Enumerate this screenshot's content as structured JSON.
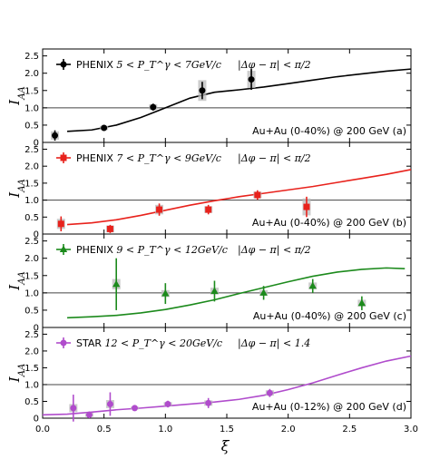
{
  "chart_data": [
    {
      "type": "scatter",
      "panel": "a",
      "ylabel": "I_AA",
      "ylim": [
        0,
        2.7
      ],
      "yticks": [
        "0",
        "0.5",
        "1.0",
        "1.5",
        "2.0",
        "2.5"
      ],
      "legend_experiment": "PHENIX",
      "legend_range": "5 < P_T^γ < 7GeV/c",
      "cut_label": "|Δφ − π| < π/2",
      "system_label": "Au+Au (0-40%) @ 200 GeV  (a)",
      "color": "#000000",
      "marker": "circle",
      "points": [
        {
          "x": 0.1,
          "y": 0.2,
          "err": 0.15,
          "sys": 0.12
        },
        {
          "x": 0.5,
          "y": 0.42,
          "err": 0.06,
          "sys": 0.06
        },
        {
          "x": 0.9,
          "y": 1.02,
          "err": 0.1,
          "sys": 0.08
        },
        {
          "x": 1.3,
          "y": 1.5,
          "err": 0.25,
          "sys": 0.3
        },
        {
          "x": 1.7,
          "y": 1.82,
          "err": 0.3,
          "sys": 0.25
        }
      ],
      "curve": {
        "x": [
          0.2,
          0.4,
          0.6,
          0.8,
          1.0,
          1.2,
          1.4,
          1.6,
          1.8,
          2.0,
          2.2,
          2.4,
          2.6,
          2.8,
          3.0
        ],
        "y": [
          0.32,
          0.36,
          0.5,
          0.72,
          1.0,
          1.28,
          1.45,
          1.52,
          1.6,
          1.7,
          1.8,
          1.9,
          1.98,
          2.06,
          2.12
        ]
      }
    },
    {
      "type": "scatter",
      "panel": "b",
      "ylabel": "I_AA",
      "ylim": [
        0,
        2.7
      ],
      "yticks": [
        "0",
        "0.5",
        "1.0",
        "1.5",
        "2.0",
        "2.5"
      ],
      "legend_experiment": "PHENIX",
      "legend_range": "7 < P_T^γ < 9GeV/c",
      "cut_label": "|Δφ − π| < π/2",
      "system_label": "Au+Au (0-40%) @ 200 GeV  (b)",
      "color": "#e8221c",
      "marker": "square",
      "points": [
        {
          "x": 0.15,
          "y": 0.3,
          "err": 0.22,
          "sys": 0.15
        },
        {
          "x": 0.55,
          "y": 0.15,
          "err": 0.12,
          "sys": 0.1
        },
        {
          "x": 0.95,
          "y": 0.72,
          "err": 0.18,
          "sys": 0.14
        },
        {
          "x": 1.35,
          "y": 0.72,
          "err": 0.14,
          "sys": 0.1
        },
        {
          "x": 1.75,
          "y": 1.15,
          "err": 0.14,
          "sys": 0.1
        },
        {
          "x": 2.15,
          "y": 0.8,
          "err": 0.3,
          "sys": 0.25
        }
      ],
      "curve": {
        "x": [
          0.2,
          0.4,
          0.6,
          0.8,
          1.0,
          1.2,
          1.4,
          1.6,
          1.8,
          2.0,
          2.2,
          2.4,
          2.6,
          2.8,
          3.0
        ],
        "y": [
          0.28,
          0.33,
          0.42,
          0.55,
          0.7,
          0.85,
          0.98,
          1.1,
          1.2,
          1.3,
          1.4,
          1.52,
          1.64,
          1.76,
          1.9
        ]
      }
    },
    {
      "type": "scatter",
      "panel": "c",
      "ylabel": "I_AA",
      "ylim": [
        0,
        2.7
      ],
      "yticks": [
        "0",
        "0.5",
        "1.0",
        "1.5",
        "2.0",
        "2.5"
      ],
      "legend_experiment": "PHENIX",
      "legend_range": "9 < P_T^γ < 12GeV/c",
      "cut_label": "|Δφ − π| < π/2",
      "system_label": "Au+Au (0-40%) @ 200 GeV  (c)",
      "color": "#1c8a1c",
      "marker": "triangle",
      "points": [
        {
          "x": 0.6,
          "y": 1.25,
          "err": 0.75,
          "sys": 0.15
        },
        {
          "x": 1.0,
          "y": 0.98,
          "err": 0.3,
          "sys": 0.1
        },
        {
          "x": 1.4,
          "y": 1.05,
          "err": 0.3,
          "sys": 0.1
        },
        {
          "x": 1.8,
          "y": 1.0,
          "err": 0.2,
          "sys": 0.08
        },
        {
          "x": 2.2,
          "y": 1.2,
          "err": 0.2,
          "sys": 0.1
        },
        {
          "x": 2.6,
          "y": 0.7,
          "err": 0.2,
          "sys": 0.1
        }
      ],
      "curve": {
        "x": [
          0.2,
          0.4,
          0.6,
          0.8,
          1.0,
          1.2,
          1.4,
          1.6,
          1.8,
          2.0,
          2.2,
          2.4,
          2.6,
          2.8,
          2.95
        ],
        "y": [
          0.28,
          0.31,
          0.35,
          0.42,
          0.52,
          0.65,
          0.8,
          0.98,
          1.15,
          1.32,
          1.48,
          1.6,
          1.68,
          1.72,
          1.7
        ]
      }
    },
    {
      "type": "scatter",
      "panel": "d",
      "ylabel": "I_AA",
      "xlabel": "ξ",
      "ylim": [
        0,
        2.7
      ],
      "xlim": [
        0,
        3.0
      ],
      "yticks": [
        "0",
        "0.5",
        "1.0",
        "1.5",
        "2.0",
        "2.5"
      ],
      "xticks": [
        "0.0",
        "0.5",
        "1.0",
        "1.5",
        "2.0",
        "2.5",
        "3.0"
      ],
      "legend_experiment": "STAR",
      "legend_range": "12 < P_T^γ < 20GeV/c",
      "cut_label": "|Δφ − π| < 1.4",
      "system_label": "Au+Au (0-12%) @ 200 GeV  (d)",
      "color": "#b04ccc",
      "marker": "circle",
      "points": [
        {
          "x": 0.25,
          "y": 0.3,
          "err": 0.4,
          "sys": 0.12
        },
        {
          "x": 0.38,
          "y": 0.1,
          "err": 0.1,
          "sys": 0.06
        },
        {
          "x": 0.55,
          "y": 0.42,
          "err": 0.35,
          "sys": 0.12
        },
        {
          "x": 0.75,
          "y": 0.3,
          "err": 0.05,
          "sys": 0.04
        },
        {
          "x": 1.02,
          "y": 0.42,
          "err": 0.1,
          "sys": 0.06
        },
        {
          "x": 1.35,
          "y": 0.45,
          "err": 0.15,
          "sys": 0.08
        },
        {
          "x": 1.85,
          "y": 0.75,
          "err": 0.12,
          "sys": 0.08
        }
      ],
      "curve": {
        "x": [
          0.0,
          0.2,
          0.4,
          0.6,
          0.8,
          1.0,
          1.2,
          1.4,
          1.6,
          1.8,
          2.0,
          2.2,
          2.4,
          2.6,
          2.8,
          3.0
        ],
        "y": [
          0.1,
          0.12,
          0.18,
          0.25,
          0.3,
          0.36,
          0.42,
          0.48,
          0.56,
          0.68,
          0.85,
          1.05,
          1.28,
          1.5,
          1.7,
          1.85
        ]
      }
    }
  ]
}
